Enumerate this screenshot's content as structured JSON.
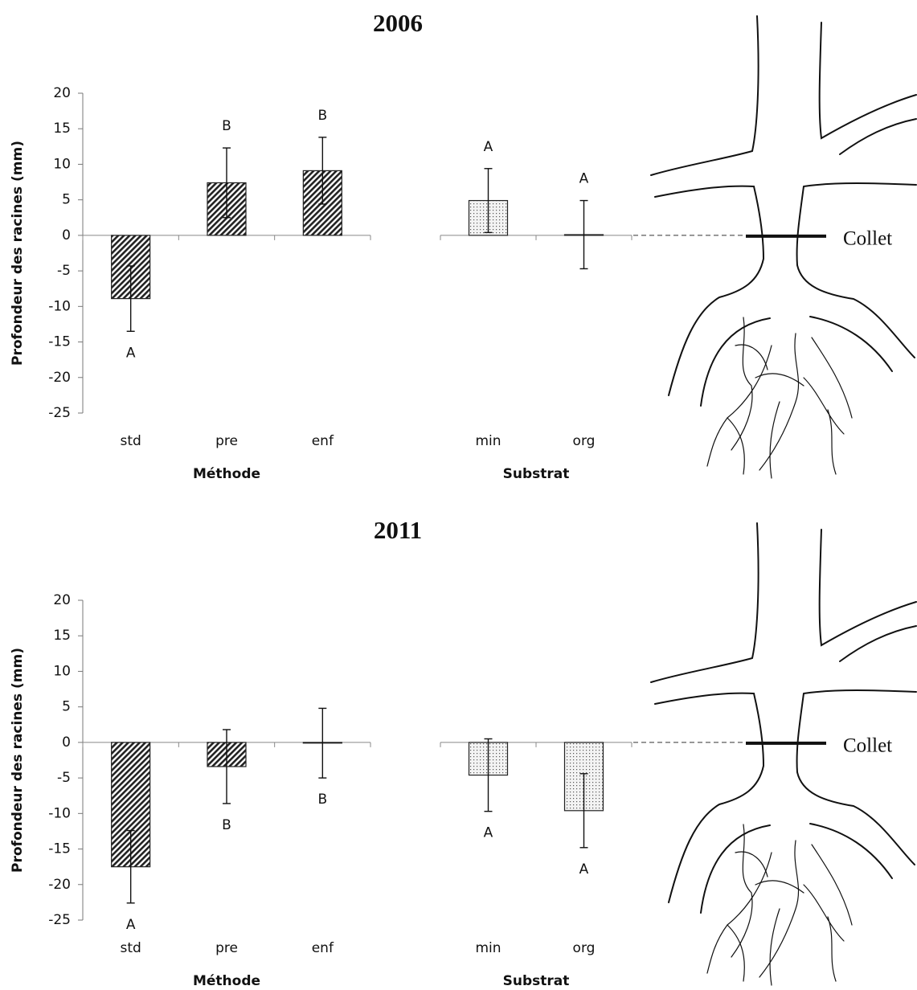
{
  "chart_data": [
    {
      "type": "bar",
      "title": "2006",
      "ylabel": "Profondeur des racines (mm)",
      "annotation": "Collet",
      "ylim": [
        -25,
        20
      ],
      "yticks": [
        20,
        15,
        10,
        5,
        0,
        -5,
        -10,
        -15,
        -20,
        -25
      ],
      "panels": [
        {
          "xlabel": "Méthode",
          "categories": [
            "std",
            "pre",
            "enf"
          ],
          "values": [
            -8.9,
            7.4,
            9.1
          ],
          "errors": [
            4.6,
            4.9,
            4.7
          ],
          "letters": [
            "A",
            "B",
            "B"
          ]
        },
        {
          "xlabel": "Substrat",
          "categories": [
            "min",
            "org"
          ],
          "values": [
            4.9,
            0.1
          ],
          "errors": [
            4.5,
            4.8
          ],
          "letters": [
            "A",
            "A"
          ]
        }
      ]
    },
    {
      "type": "bar",
      "title": "2011",
      "ylabel": "Profondeur des racines (mm)",
      "annotation": "Collet",
      "ylim": [
        -25,
        20
      ],
      "yticks": [
        20,
        15,
        10,
        5,
        0,
        -5,
        -10,
        -15,
        -20,
        -25
      ],
      "panels": [
        {
          "xlabel": "Méthode",
          "categories": [
            "std",
            "pre",
            "enf"
          ],
          "values": [
            -17.5,
            -3.4,
            -0.1
          ],
          "errors": [
            5.1,
            5.2,
            4.9
          ],
          "letters": [
            "A",
            "B",
            "B"
          ]
        },
        {
          "xlabel": "Substrat",
          "categories": [
            "min",
            "org"
          ],
          "values": [
            -4.6,
            -9.6
          ],
          "errors": [
            5.1,
            5.2
          ],
          "letters": [
            "A",
            "A"
          ]
        }
      ]
    }
  ]
}
